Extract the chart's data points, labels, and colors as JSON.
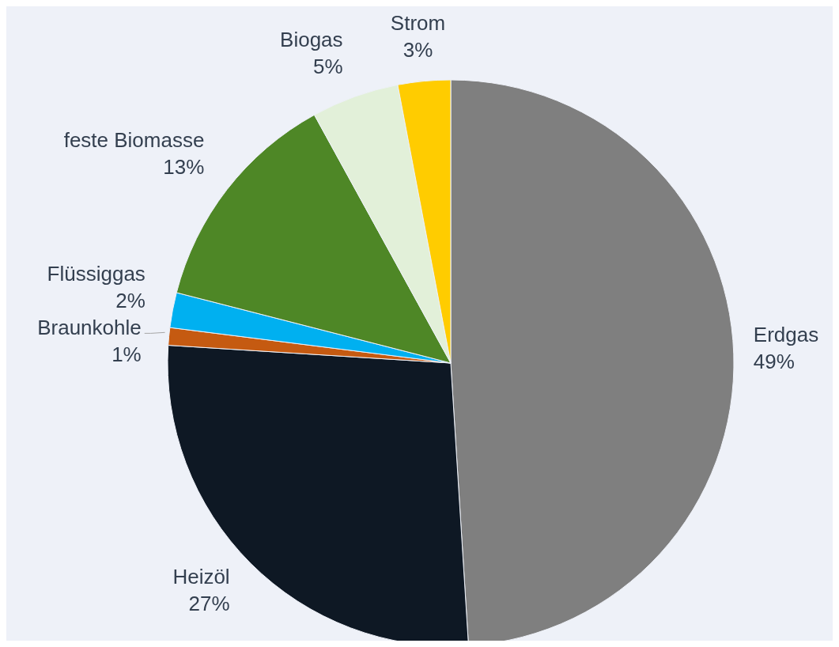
{
  "chart_data": {
    "type": "pie",
    "categories": [
      "Erdgas",
      "Heizöl",
      "Braunkohle",
      "Flüssiggas",
      "feste Biomasse",
      "Biogas",
      "Strom"
    ],
    "values": [
      49,
      27,
      1,
      2,
      13,
      5,
      3
    ],
    "value_labels": [
      "49%",
      "27%",
      "1%",
      "2%",
      "13%",
      "5%",
      "3%"
    ],
    "colors": [
      "#7f7f7f",
      "#0e1824",
      "#c55a11",
      "#00b0f0",
      "#4e8726",
      "#e2f0d9",
      "#ffcc00"
    ]
  }
}
